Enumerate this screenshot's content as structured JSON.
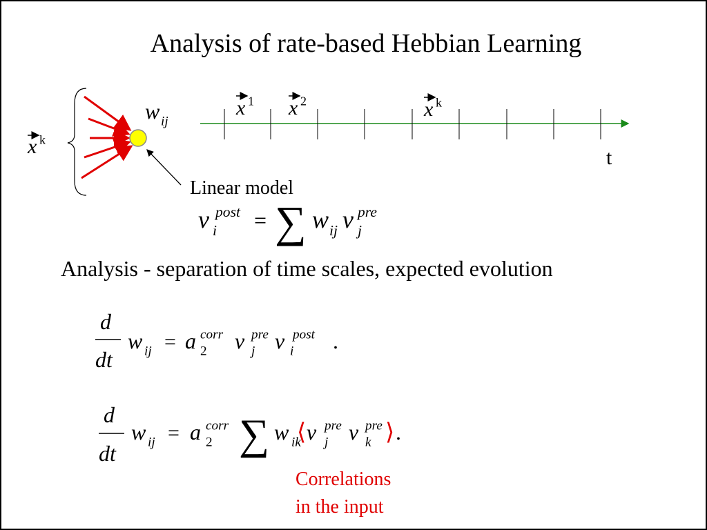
{
  "title": "Analysis of rate-based Hebbian Learning",
  "diagram": {
    "input": {
      "base": "x",
      "sup": "k"
    },
    "weight": {
      "base": "w",
      "sub": "ij"
    },
    "spikes": [
      {
        "base": "x",
        "sup": "1"
      },
      {
        "base": "x",
        "sup": "2"
      },
      {
        "base": "x",
        "sup": "k"
      }
    ],
    "time_axis": "t",
    "model_label": "Linear model"
  },
  "linear_model": {
    "lhs": {
      "base": "ν",
      "sup": "post",
      "sub": "i"
    },
    "equals": "=",
    "sum": "∑",
    "w": {
      "base": "w",
      "sub": "ij"
    },
    "rhs": {
      "base": "ν",
      "sup": "pre",
      "sub": "j"
    }
  },
  "subtitle": "Analysis - separation of time scales, expected evolution",
  "equation_1": {
    "num": "d",
    "den": "dt",
    "w": {
      "base": "w",
      "sub": "ij"
    },
    "equals": "=",
    "a": {
      "base": "a",
      "sup": "corr",
      "sub": "2"
    },
    "nu_pre": {
      "base": "ν",
      "sup": "pre",
      "sub": "j"
    },
    "nu_post": {
      "base": "ν",
      "sup": "post",
      "sub": "i"
    },
    "period": "."
  },
  "equation_2": {
    "num": "d",
    "den": "dt",
    "w": {
      "base": "w",
      "sub": "ij"
    },
    "equals": "=",
    "a": {
      "base": "a",
      "sup": "corr",
      "sub": "2"
    },
    "sum": "∑",
    "w_ik": {
      "base": "w",
      "sub": "ik"
    },
    "open": "⟨",
    "nu_j": {
      "base": "ν",
      "sup": "pre",
      "sub": "j"
    },
    "nu_k": {
      "base": "ν",
      "sup": "pre",
      "sub": "k"
    },
    "close": "⟩",
    "period": "."
  },
  "annotation": [
    "Correlations",
    "in the input"
  ]
}
